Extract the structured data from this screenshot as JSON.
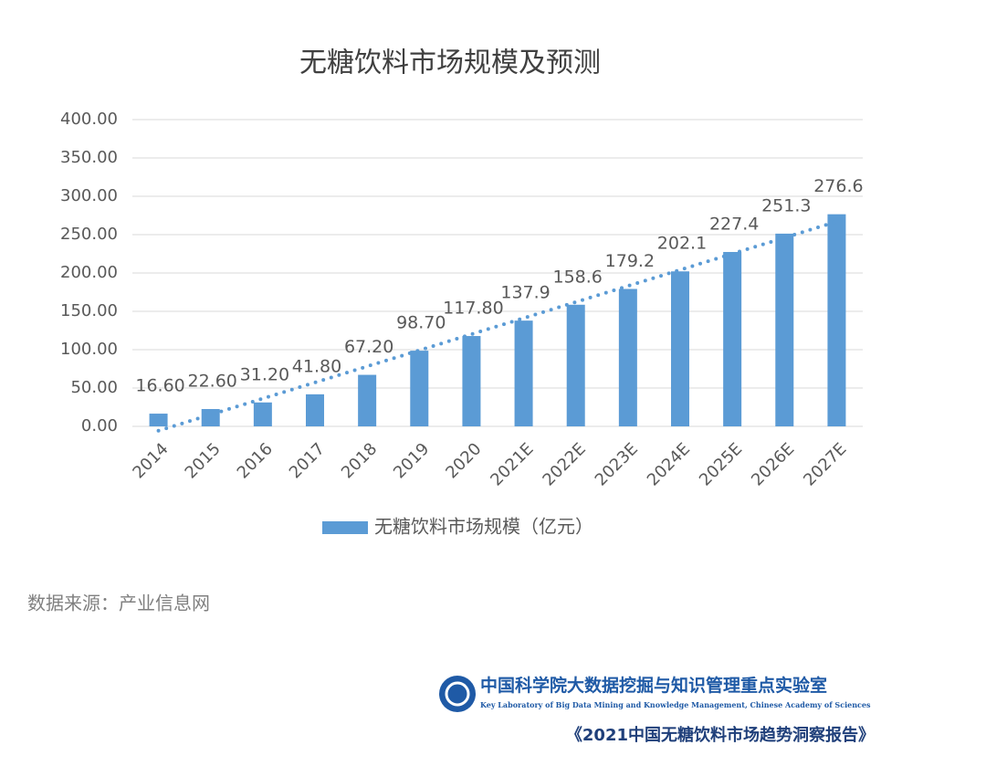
{
  "chart_data": {
    "type": "bar",
    "title": "无糖饮料市场规模及预测",
    "categories": [
      "2014",
      "2015",
      "2016",
      "2017",
      "2018",
      "2019",
      "2020",
      "2021E",
      "2022E",
      "2023E",
      "2024E",
      "2025E",
      "2026E",
      "2027E"
    ],
    "series": [
      {
        "name": "无糖饮料市场规模（亿元）",
        "color": "#5b9bd5",
        "values": [
          16.6,
          22.6,
          31.2,
          41.8,
          67.2,
          98.7,
          117.8,
          137.9,
          158.6,
          179.2,
          202.1,
          227.4,
          251.3,
          276.6
        ],
        "value_labels": [
          "16.60",
          "22.60",
          "31.20",
          "41.80",
          "67.20",
          "98.70",
          "117.80",
          "137.9",
          "158.6",
          "179.2",
          "202.1",
          "227.4",
          "251.3",
          "276.6"
        ]
      }
    ],
    "ylim": [
      0,
      400
    ],
    "yticks": [
      {
        "value": 0,
        "label": "0.00"
      },
      {
        "value": 50,
        "label": "50.00"
      },
      {
        "value": 100,
        "label": "100.00"
      },
      {
        "value": 150,
        "label": "150.00"
      },
      {
        "value": 200,
        "label": "200.00"
      },
      {
        "value": 250,
        "label": "250.00"
      },
      {
        "value": 300,
        "label": "300.00"
      },
      {
        "value": 350,
        "label": "350.00"
      },
      {
        "value": 400,
        "label": "400.00"
      }
    ],
    "grid": true,
    "trendline": true,
    "legend": "bottom"
  },
  "source": "数据来源：产业信息网",
  "footer": {
    "org": "中国科学院大数据挖掘与知识管理重点实验室",
    "org_en": "Key Laboratory of Big Data Mining and Knowledge Management, Chinese Academy of Sciences",
    "report": "《2021中国无糖饮料市场趋势洞察报告》"
  }
}
